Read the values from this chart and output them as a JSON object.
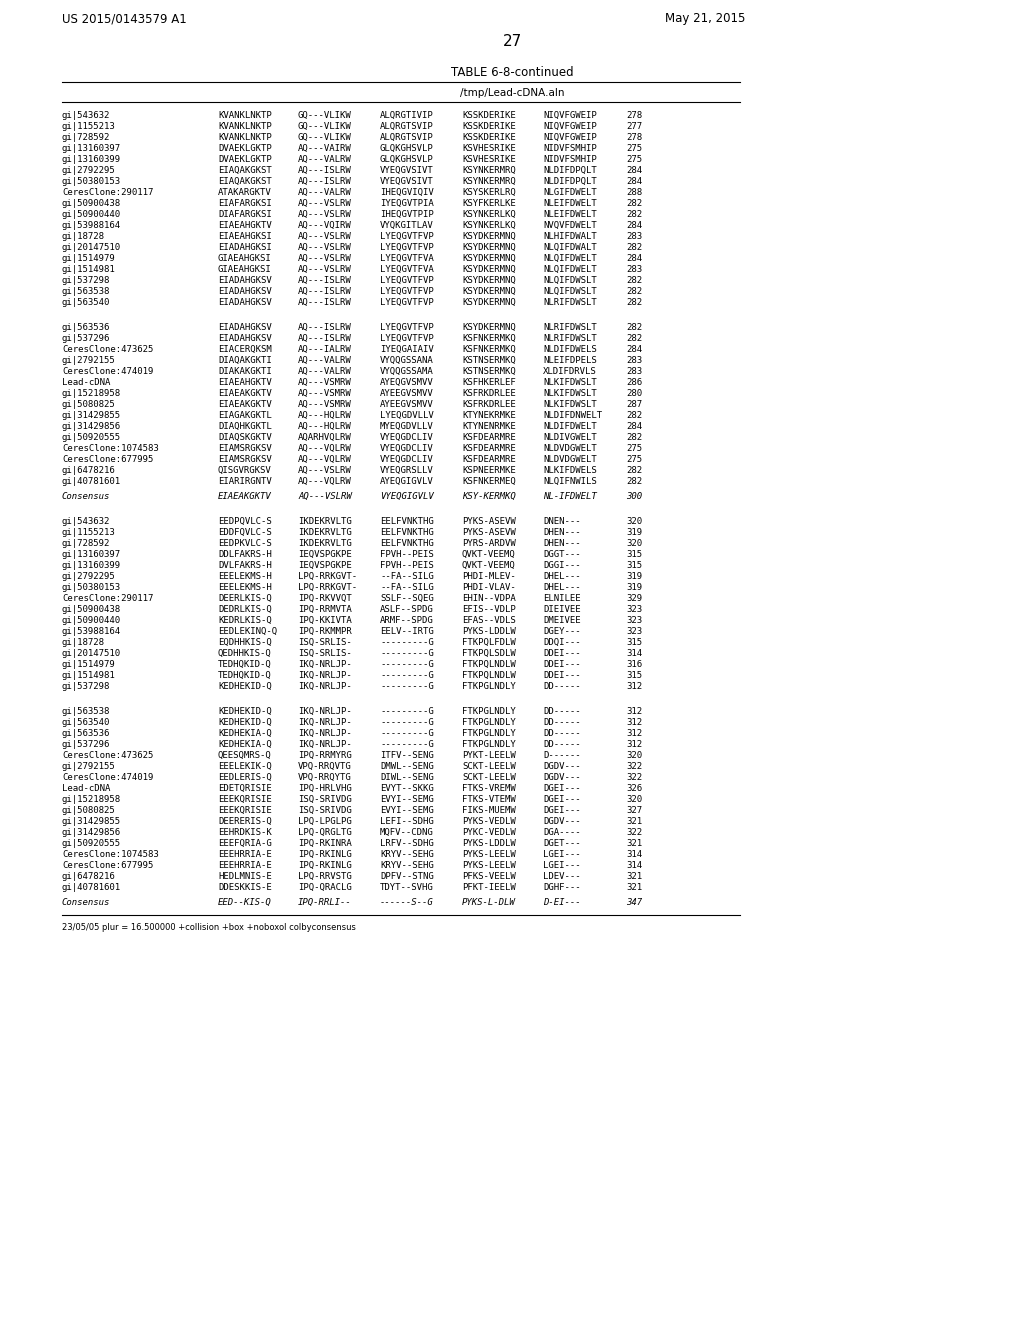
{
  "header_left": "US 2015/0143579 A1",
  "header_right": "May 21, 2015",
  "page_number": "27",
  "table_title": "TABLE 6-8-continued",
  "subtitle": "/tmp/Lead-cDNA.aln",
  "footer": "23/05/05 plur = 16.500000 +collision +box +noboxol colbyconsensus",
  "section1_rows": [
    [
      "gi|543632",
      "KVANKLNKTP",
      "GQ---VLIKW",
      "ALQRGTIVIP",
      "KSSKDERIKE",
      "NIQVFGWEIP",
      "278"
    ],
    [
      "gi|1155213",
      "KVANKLNKTP",
      "GQ---VLIKW",
      "ALQRGTSVIP",
      "KSSKDERIKE",
      "NIQVFGWEIP",
      "277"
    ],
    [
      "gi|728592",
      "KVANKLNKTP",
      "GQ---VLIKW",
      "ALQRGTSVIP",
      "KSSKDERIKE",
      "NIQVFGWEIP",
      "278"
    ],
    [
      "gi|13160397",
      "DVAEKLGKTP",
      "AQ---VAIRW",
      "GLQKGHSVLP",
      "KSVHESRIKE",
      "NIDVFSMHIP",
      "275"
    ],
    [
      "gi|13160399",
      "DVAEKLGKTP",
      "AQ---VALRW",
      "GLQKGHSVLP",
      "KSVHESRIKE",
      "NIDVFSMHIP",
      "275"
    ],
    [
      "gi|2792295",
      "EIAQAKGKST",
      "AQ---ISLRW",
      "VYEQGVSIVT",
      "KSYNKERMRQ",
      "NLDIFDPQLT",
      "284"
    ],
    [
      "gi|50380153",
      "EIAQAKGKST",
      "AQ---ISLRW",
      "VYEQGVSIVT",
      "KSYNKERMRQ",
      "NLDIFDPQLT",
      "284"
    ],
    [
      "CeresClone:290117",
      "ATAKARGKTV",
      "AQ---VALRW",
      "IHEQGVIQIV",
      "KSYSKERLRQ",
      "NLGIFDWELT",
      "288"
    ],
    [
      "gi|50900438",
      "EIAFARGKSI",
      "AQ---VSLRW",
      "IYEQGVTPIA",
      "KSYFKERLKE",
      "NLEIFDWELT",
      "282"
    ],
    [
      "gi|50900440",
      "DIAFARGKSI",
      "AQ---VSLRW",
      "IHEQGVTPIP",
      "KSYNKERLKQ",
      "NLEIFDWELT",
      "282"
    ],
    [
      "gi|53988164",
      "EIAEAHGKTV",
      "AQ---VQIRW",
      "VYQKGITLAV",
      "KSYNKERLKQ",
      "NVQVFDWELT",
      "284"
    ],
    [
      "gi|18728",
      "EIAEAHGKSI",
      "AQ---VSLRW",
      "LYEQGVTFVP",
      "KSYDKERMNQ",
      "NLHIFDWALT",
      "283"
    ],
    [
      "gi|20147510",
      "EIADAHGKSI",
      "AQ---VSLRW",
      "LYEQGVTFVP",
      "KSYDKERMNQ",
      "NLQIFDWALT",
      "282"
    ],
    [
      "gi|1514979",
      "GIAEAHGKSI",
      "AQ---VSLRW",
      "LYEQGVTFVA",
      "KSYDKERMNQ",
      "NLQIFDWELT",
      "284"
    ],
    [
      "gi|1514981",
      "GIAEAHGKSI",
      "AQ---VSLRW",
      "LYEQGVTFVA",
      "KSYDKERMNQ",
      "NLQIFDWELT",
      "283"
    ],
    [
      "gi|537298",
      "EIADAHGKSV",
      "AQ---ISLRW",
      "LYEQGVTFVP",
      "KSYDKERMNQ",
      "NLQIFDWSLT",
      "282"
    ],
    [
      "gi|563538",
      "EIADAHGKSV",
      "AQ---ISLRW",
      "LYEQGVTFVP",
      "KSYDKERMNQ",
      "NLQIFDWSLT",
      "282"
    ],
    [
      "gi|563540",
      "EIADAHGKSV",
      "AQ---ISLRW",
      "LYEQGVTFVP",
      "KSYDKERMNQ",
      "NLRIFDWSLT",
      "282"
    ]
  ],
  "section2_rows": [
    [
      "gi|563536",
      "EIADAHGKSV",
      "AQ---ISLRW",
      "LYEQGVTFVP",
      "KSYDKERMNQ",
      "NLRIFDWSLT",
      "282"
    ],
    [
      "gi|537296",
      "EIADAHGKSV",
      "AQ---ISLRW",
      "LYEQGVTFVP",
      "KSFNKERMKQ",
      "NLRIFDWSLT",
      "282"
    ],
    [
      "CeresClone:473625",
      "EIACERQKSM",
      "AQ---IALRW",
      "IYEQGAIAIV",
      "KSFNKERMKQ",
      "NLDIFDWELS",
      "284"
    ],
    [
      "gi|2792155",
      "DIAQAKGKTI",
      "AQ---VALRW",
      "VYQQGSSANA",
      "KSTNSERMKQ",
      "NLEIFDPELS",
      "283"
    ],
    [
      "CeresClone:474019",
      "DIAKAKGKTI",
      "AQ---VALRW",
      "VYQQGSSAMA",
      "KSTNSERMKQ",
      "XLDIFDRVLS",
      "283"
    ],
    [
      "Lead-cDNA",
      "EIAEAHGKTV",
      "AQ---VSMRW",
      "AYEQGVSMVV",
      "KSFHKERLEF",
      "NLKIFDWSLT",
      "286"
    ],
    [
      "gi|15218958",
      "EIAEAKGKTV",
      "AQ---VSMRW",
      "AYEEGVSMVV",
      "KSFRKDRLEE",
      "NLKIFDWSLT",
      "280"
    ],
    [
      "gi|5080825",
      "EIAEAKGKTV",
      "AQ---VSMRW",
      "AYEEGVSMVV",
      "KSFRKDRLEE",
      "NLKIFDWSLT",
      "287"
    ],
    [
      "gi|31429855",
      "EIAGAKGKTL",
      "AQ---HQLRW",
      "LYEQGDVLLV",
      "KTYNEKRMKE",
      "NLDIFDNWELT",
      "282"
    ],
    [
      "gi|31429856",
      "DIAQHKGKTL",
      "AQ---HQLRW",
      "MYEQGDVLLV",
      "KTYNENRMKE",
      "NLDIFDWELT",
      "284"
    ],
    [
      "gi|50920555",
      "DIAQSKGKTV",
      "AQARHVQLRW",
      "VYEQGDCLIV",
      "KSFDEARMRE",
      "NLDIVGWELT",
      "282"
    ],
    [
      "CeresClone:1074583",
      "EIAMSRGKSV",
      "AQ---VQLRW",
      "VYEQGDCLIV",
      "KSFDЕARMRE",
      "NLDVDGWELT",
      "275"
    ],
    [
      "CeresClone:677995",
      "EIAMSRGKSV",
      "AQ---VQLRW",
      "VYEQGDCLIV",
      "KSFDЕARMRE",
      "NLDVDGWELT",
      "275"
    ],
    [
      "gi|6478216",
      "QISGVRGKSV",
      "AQ---VSLRW",
      "VYEQGRSLLV",
      "KSPNEERMKE",
      "NLKIFDWELS",
      "282"
    ],
    [
      "gi|40781601",
      "EIARIRGNTV",
      "AQ---VQLRW",
      "AYEQGIGVLV",
      "KSFNKERMЕQ",
      "NLQIFNWILS",
      "282"
    ]
  ],
  "consensus2": [
    "Consensus",
    "EIAEAKGKTV",
    "AQ---VSLRW",
    "VYEQGIGVLV",
    "KSY-KERMKQ",
    "NL-IFDWELT",
    "300"
  ],
  "section3_rows": [
    [
      "gi|543632",
      "EEDPQVLC-S",
      "IKDEKRVLTG",
      "EELFVNKTHG",
      "PYKS-ASEVW",
      "DNEN---",
      "320"
    ],
    [
      "gi|1155213",
      "EDDFQVLC-S",
      "IKDEKRVLTG",
      "EELFVNKTHG",
      "PYKS-ASEVW",
      "DHEN---",
      "319"
    ],
    [
      "gi|728592",
      "EEDPKVLC-S",
      "IKDEKRVLTG",
      "EELFVNKTHG",
      "PYRS-ARDVW",
      "DHEN---",
      "320"
    ],
    [
      "gi|13160397",
      "DDLFAKRS-H",
      "IEQVSPGKPE",
      "FPVH--PEIS",
      "QVKT-VEEMQ",
      "DGGT---",
      "315"
    ],
    [
      "gi|13160399",
      "DVLFAKRS-H",
      "IEQVSPGKPE",
      "FPVH--PEIS",
      "QVKT-VEEMQ",
      "DGGI---",
      "315"
    ],
    [
      "gi|2792295",
      "EEELEKMS-H",
      "LPQ-RRKGVT-",
      "--FA--SILG",
      "PHDI-MLEV-",
      "DHEL---",
      "319"
    ],
    [
      "gi|50380153",
      "EEELEKMS-H",
      "LPQ-RRKGVT-",
      "--FA--SILG",
      "PHDI-VLAV-",
      "DHEL---",
      "319"
    ],
    [
      "CeresClone:290117",
      "DEERLKIS-Q",
      "IPQ-RKVVQT",
      "SSLF--SQEG",
      "EHIN--VDPA",
      "ELNILEE",
      "329"
    ],
    [
      "gi|50900438",
      "DEDRLKIS-Q",
      "IPQ-RRMVTA",
      "ASLF--SPDG",
      "EFIS--VDLP",
      "DIEIVEE",
      "323"
    ],
    [
      "gi|50900440",
      "KEDRLKIS-Q",
      "IPQ-KKIVTA",
      "ARMF--SPDG",
      "EFAS--VDLS",
      "DMEIVEE",
      "323"
    ],
    [
      "gi|53988164",
      "EEDLEKINQ-Q",
      "IPQ-RKMMPR",
      "EELV--IRTG",
      "PYKS-LDDLW",
      "DGEY---",
      "323"
    ],
    [
      "gi|18728",
      "EQDHHKIS-Q",
      "ISQ-SRLIS-",
      "---------G",
      "FTKPQLFDLW",
      "DDQI---",
      "315"
    ],
    [
      "gi|20147510",
      "QEDHHKIS-Q",
      "ISQ-SRLIS-",
      "---------G",
      "FTKPQLSDLW",
      "DDEI---",
      "314"
    ],
    [
      "gi|1514979",
      "TEDHQKID-Q",
      "IKQ-NRLJP-",
      "---------G",
      "FTKPQLNDLW",
      "DDEI---",
      "316"
    ],
    [
      "gi|1514981",
      "TEDHQKID-Q",
      "IKQ-NRLJP-",
      "---------G",
      "FTKPQLNDLW",
      "DDEI---",
      "315"
    ],
    [
      "gi|537298",
      "KEDHEKID-Q",
      "IKQ-NRLJP-",
      "---------G",
      "FTKPGLNDLY",
      "DD-----",
      "312"
    ]
  ],
  "section4_rows": [
    [
      "gi|563538",
      "KEDHEKID-Q",
      "IKQ-NRLJP-",
      "---------G",
      "FTKPGLNDLY",
      "DD-----",
      "312"
    ],
    [
      "gi|563540",
      "KEDHEKID-Q",
      "IKQ-NRLJP-",
      "---------G",
      "FTKPGLNDLY",
      "DD-----",
      "312"
    ],
    [
      "gi|563536",
      "KEDHEKIA-Q",
      "IKQ-NRLJP-",
      "---------G",
      "FTKPGLNDLY",
      "DD-----",
      "312"
    ],
    [
      "gi|537296",
      "KEDHEKIA-Q",
      "IKQ-NRLJP-",
      "---------G",
      "FTKPGLNDLY",
      "DD-----",
      "312"
    ],
    [
      "CeresClone:473625",
      "QEESQMRS-Q",
      "IPQ-RRMYRG",
      "ITFV--SENG",
      "PYKT-LEELW",
      "D------",
      "320"
    ],
    [
      "gi|2792155",
      "EEELEKIK-Q",
      "VPQ-RRQVTG",
      "DMWL--SENG",
      "SCKT-LEELW",
      "DGDV---",
      "322"
    ],
    [
      "CeresClone:474019",
      "EEDLERIS-Q",
      "VPQ-RRQYTG",
      "DIWL--SENG",
      "SCKT-LEELW",
      "DGDV---",
      "322"
    ],
    [
      "Lead-cDNA",
      "EDETQRISIE",
      "IPQ-HRLVHG",
      "EVYT--SKKG",
      "FTKS-VREMW",
      "DGEI---",
      "326"
    ],
    [
      "gi|15218958",
      "EEEKQRISIE",
      "ISQ-SRIVDG",
      "EVYI--SEMG",
      "FTKS-VTEMW",
      "DGEI---",
      "320"
    ],
    [
      "gi|5080825",
      "EEEKQRISIE",
      "ISQ-SRIVDG",
      "EVYI--SEMG",
      "FIKS-MUEMW",
      "DGEI---",
      "327"
    ],
    [
      "gi|31429855",
      "DEERERIS-Q",
      "LPQ-LPGLPG",
      "LEFI--SDHG",
      "PYKS-VEDLW",
      "DGDV---",
      "321"
    ],
    [
      "gi|31429856",
      "EEHRDKIS-K",
      "LPQ-QRGLTG",
      "MQFV--CDNG",
      "PYKC-VEDLW",
      "DGA----",
      "322"
    ],
    [
      "gi|50920555",
      "EEEFQRIA-G",
      "IPQ-RKINRA",
      "LRFV--SDHG",
      "PYKS-LDDLW",
      "DGET---",
      "321"
    ],
    [
      "CeresClone:1074583",
      "EEEHRRIA-E",
      "IPQ-RKINLG",
      "KRYV--SEHG",
      "PYKS-LEELW",
      "LGEI---",
      "314"
    ],
    [
      "CeresClone:677995",
      "EEEHRRIA-E",
      "IPQ-RKINLG",
      "KRYV--SEHG",
      "PYKS-LEELW",
      "LGEI---",
      "314"
    ],
    [
      "gi|6478216",
      "HEDLMNIS-E",
      "LPQ-RRVSTG",
      "DPFV--STNG",
      "PFKS-VEELW",
      "LDEV---",
      "321"
    ],
    [
      "gi|40781601",
      "DDESKKIS-E",
      "IPQ-QRACLG",
      "TDYT--SVHG",
      "PFKT-IEELW",
      "DGHF---",
      "321"
    ]
  ],
  "consensus4": [
    "Consensus",
    "EED--KIS-Q",
    "IPQ-RRLI--",
    "------S--G",
    "PYKS-L-DLW",
    "D-EI---",
    "347"
  ]
}
